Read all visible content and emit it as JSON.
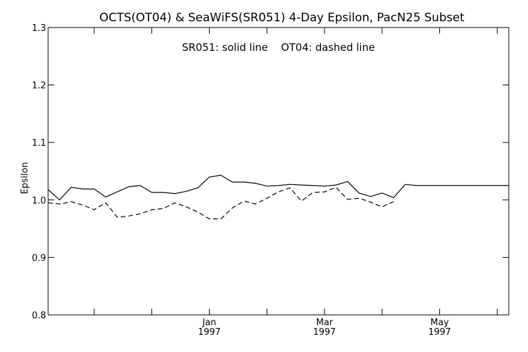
{
  "chart_data": {
    "type": "line",
    "title": "OCTS(OT04) & SeaWiFS(SR051) 4-Day Epsilon, PacN25 Subset",
    "annotation": "SR051: solid line    OT04: dashed line",
    "ylabel": "Epsilon",
    "xlabel": "",
    "ylim": [
      0.8,
      1.3
    ],
    "y_ticks": [
      "0.8",
      "0.9",
      "1.0",
      "1.1",
      "1.2",
      "1.3"
    ],
    "x_range_days": [
      0,
      160
    ],
    "x_ticks": [
      {
        "day": 16,
        "label_month": "",
        "label_year": ""
      },
      {
        "day": 36,
        "label_month": "",
        "label_year": ""
      },
      {
        "day": 56,
        "label_month": "Jan",
        "label_year": "1997"
      },
      {
        "day": 76,
        "label_month": "",
        "label_year": ""
      },
      {
        "day": 96,
        "label_month": "Mar",
        "label_year": "1997"
      },
      {
        "day": 116,
        "label_month": "",
        "label_year": ""
      },
      {
        "day": 136,
        "label_month": "May",
        "label_year": "1997"
      },
      {
        "day": 156,
        "label_month": "",
        "label_year": ""
      }
    ],
    "grid": false,
    "series": [
      {
        "name": "SR051",
        "style": "solid",
        "color": "#000000",
        "x": [
          0,
          4,
          8,
          12,
          16,
          20,
          24,
          28,
          32,
          36,
          40,
          44,
          48,
          52,
          56,
          60,
          64,
          68,
          72,
          76,
          80,
          84,
          88,
          92,
          96,
          100,
          104,
          108,
          112,
          116,
          120,
          124,
          128,
          132,
          136,
          140,
          144,
          148,
          152,
          156,
          160
        ],
        "y": [
          1.018,
          1.0,
          1.022,
          1.019,
          1.019,
          1.005,
          1.014,
          1.023,
          1.025,
          1.013,
          1.013,
          1.011,
          1.015,
          1.021,
          1.04,
          1.043,
          1.031,
          1.031,
          1.029,
          1.024,
          1.025,
          1.027,
          1.026,
          1.025,
          1.024,
          1.026,
          1.032,
          1.012,
          1.006,
          1.012,
          1.004,
          1.027,
          1.025,
          1.025,
          1.025,
          1.025,
          1.025,
          1.025,
          1.025,
          1.025,
          1.025
        ]
      },
      {
        "name": "OT04",
        "style": "dashed",
        "color": "#000000",
        "x": [
          0,
          4,
          8,
          12,
          16,
          20,
          24,
          28,
          32,
          36,
          40,
          44,
          48,
          52,
          56,
          60,
          64,
          68,
          72,
          76,
          80,
          84,
          88,
          92,
          96,
          100,
          104,
          108,
          112,
          116,
          120
        ],
        "y": [
          0.995,
          0.993,
          0.997,
          0.991,
          0.983,
          0.995,
          0.97,
          0.972,
          0.976,
          0.983,
          0.985,
          0.995,
          0.988,
          0.979,
          0.967,
          0.967,
          0.986,
          0.998,
          0.993,
          1.003,
          1.014,
          1.021,
          0.998,
          1.013,
          1.014,
          1.022,
          1.001,
          1.003,
          0.996,
          0.988,
          0.997
        ]
      }
    ]
  }
}
